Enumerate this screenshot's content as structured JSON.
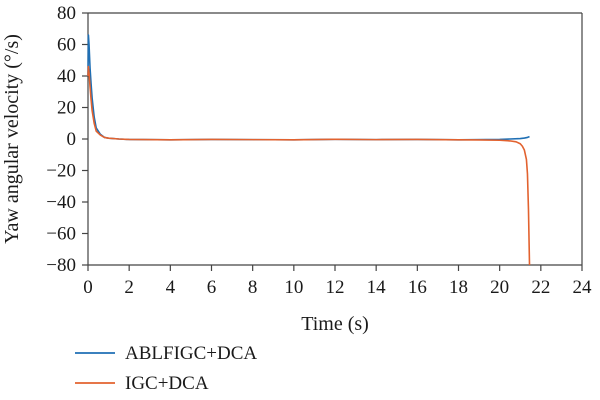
{
  "chart_data": {
    "type": "line",
    "title": "",
    "xlabel": "Time (s)",
    "ylabel": "Yaw angular velocity (°/s)",
    "xlim": [
      0,
      24
    ],
    "ylim": [
      -80,
      80
    ],
    "xticks": [
      0,
      2,
      4,
      6,
      8,
      10,
      12,
      14,
      16,
      18,
      20,
      22,
      24
    ],
    "yticks": [
      80,
      60,
      40,
      20,
      0,
      -20,
      -40,
      -60,
      -80
    ],
    "xtick_labels": [
      "0",
      "2",
      "4",
      "6",
      "8",
      "10",
      "12",
      "14",
      "16",
      "18",
      "20",
      "22",
      "24"
    ],
    "ytick_labels": [
      "80",
      "60",
      "40",
      "20",
      "0",
      "−20",
      "−40",
      "−60",
      "−80"
    ],
    "grid": false,
    "legend_position": "bottom-left, below plot",
    "series": [
      {
        "name": "ABLFIGC+DCA",
        "color": "#1f6fb4",
        "x": [
          0,
          0.02,
          0.05,
          0.1,
          0.15,
          0.2,
          0.3,
          0.4,
          0.6,
          0.8,
          1.0,
          1.5,
          2,
          4,
          6,
          8,
          10,
          12,
          14,
          16,
          18,
          20,
          20.5,
          21,
          21.2,
          21.35,
          21.45
        ],
        "y": [
          40,
          66,
          60,
          45,
          35,
          26,
          14,
          7,
          3,
          1,
          0.5,
          0,
          -0.3,
          -0.5,
          -0.3,
          -0.4,
          -0.5,
          -0.2,
          -0.4,
          -0.3,
          -0.5,
          -0.3,
          0,
          0.3,
          0.6,
          1.0,
          1.5
        ]
      },
      {
        "name": "IGC+DCA",
        "color": "#e2622f",
        "x": [
          0,
          0.02,
          0.05,
          0.1,
          0.15,
          0.2,
          0.3,
          0.4,
          0.6,
          0.8,
          1.0,
          1.5,
          2,
          4,
          6,
          8,
          10,
          12,
          14,
          16,
          18,
          19,
          20,
          20.5,
          20.8,
          21.0,
          21.1,
          21.2,
          21.3,
          21.35,
          21.4,
          21.45
        ],
        "y": [
          40,
          46,
          42,
          33,
          25,
          18,
          10,
          5,
          2.5,
          1,
          0.5,
          0,
          -0.3,
          -0.5,
          -0.3,
          -0.4,
          -0.5,
          -0.2,
          -0.4,
          -0.3,
          -0.5,
          -0.6,
          -0.8,
          -1.2,
          -1.8,
          -3,
          -4.5,
          -7,
          -13,
          -22,
          -45,
          -80
        ]
      }
    ]
  }
}
